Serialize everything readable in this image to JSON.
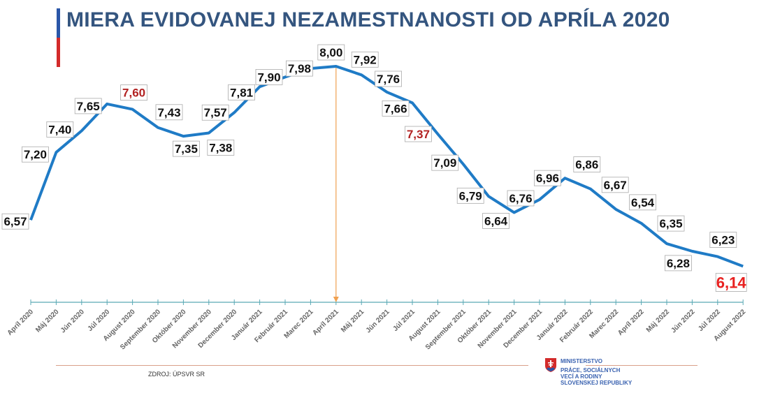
{
  "title": "MIERA EVIDOVANEJ NEZAMESTNANOSTI OD APRÍLA 2020",
  "source": "ZDROJ: ÚPSVR SR",
  "logo": {
    "line1": "MINISTERSTVO",
    "line2": "PRÁCE, SOCIÁLNYCH",
    "line3": "VECÍ A RODINY",
    "line4": "SLOVENSKEJ REPUBLIKY"
  },
  "colors": {
    "line": "#1f7bc6",
    "highlight": "#b22222",
    "last": "#e8201f",
    "marker": "#f0a050",
    "axis": "#5aa9b5",
    "title": "#34557f"
  },
  "chart_data": {
    "type": "line",
    "title": "MIERA EVIDOVANEJ NEZAMESTNANOSTI OD APRÍLA 2020",
    "categories": [
      "Apríl 2020",
      "Máj 2020",
      "Jún 2020",
      "Júl 2020",
      "August 2020",
      "September 2020",
      "Október 2020",
      "November 2020",
      "December 2020",
      "Január 2021",
      "Február 2021",
      "Marec 2021",
      "Apríl 2021",
      "Máj 2021",
      "Jún 2021",
      "Júl 2021",
      "August 2021",
      "September 2021",
      "Október 2021",
      "November 2021",
      "December 2021",
      "Január 2022",
      "Február 2022",
      "Marec 2022",
      "Apríl 2022",
      "Máj 2022",
      "Jún 2022",
      "Júl 2022",
      "August 2022"
    ],
    "values": [
      6.57,
      7.2,
      7.4,
      7.65,
      7.6,
      7.43,
      7.35,
      7.38,
      7.57,
      7.81,
      7.9,
      7.98,
      8.0,
      7.92,
      7.76,
      7.66,
      7.37,
      7.09,
      6.79,
      6.64,
      6.76,
      6.96,
      6.86,
      6.67,
      6.54,
      6.35,
      6.28,
      6.23,
      6.14
    ],
    "labels": [
      "6,57",
      "7,20",
      "7,40",
      "7,65",
      "7,60",
      "7,43",
      "7,35",
      "7,38",
      "7,57",
      "7,81",
      "7,90",
      "7,98",
      "8,00",
      "7,92",
      "7,76",
      "7,66",
      "7,37",
      "7,09",
      "6,79",
      "6,64",
      "6,76",
      "6,96",
      "6,86",
      "6,67",
      "6,54",
      "6,35",
      "6,28",
      "6,23",
      "6,14"
    ],
    "highlighted": [
      "August 2020",
      "August 2021"
    ],
    "emphasized": "August 2022",
    "marker_at": "Apríl 2021",
    "grid": false
  }
}
